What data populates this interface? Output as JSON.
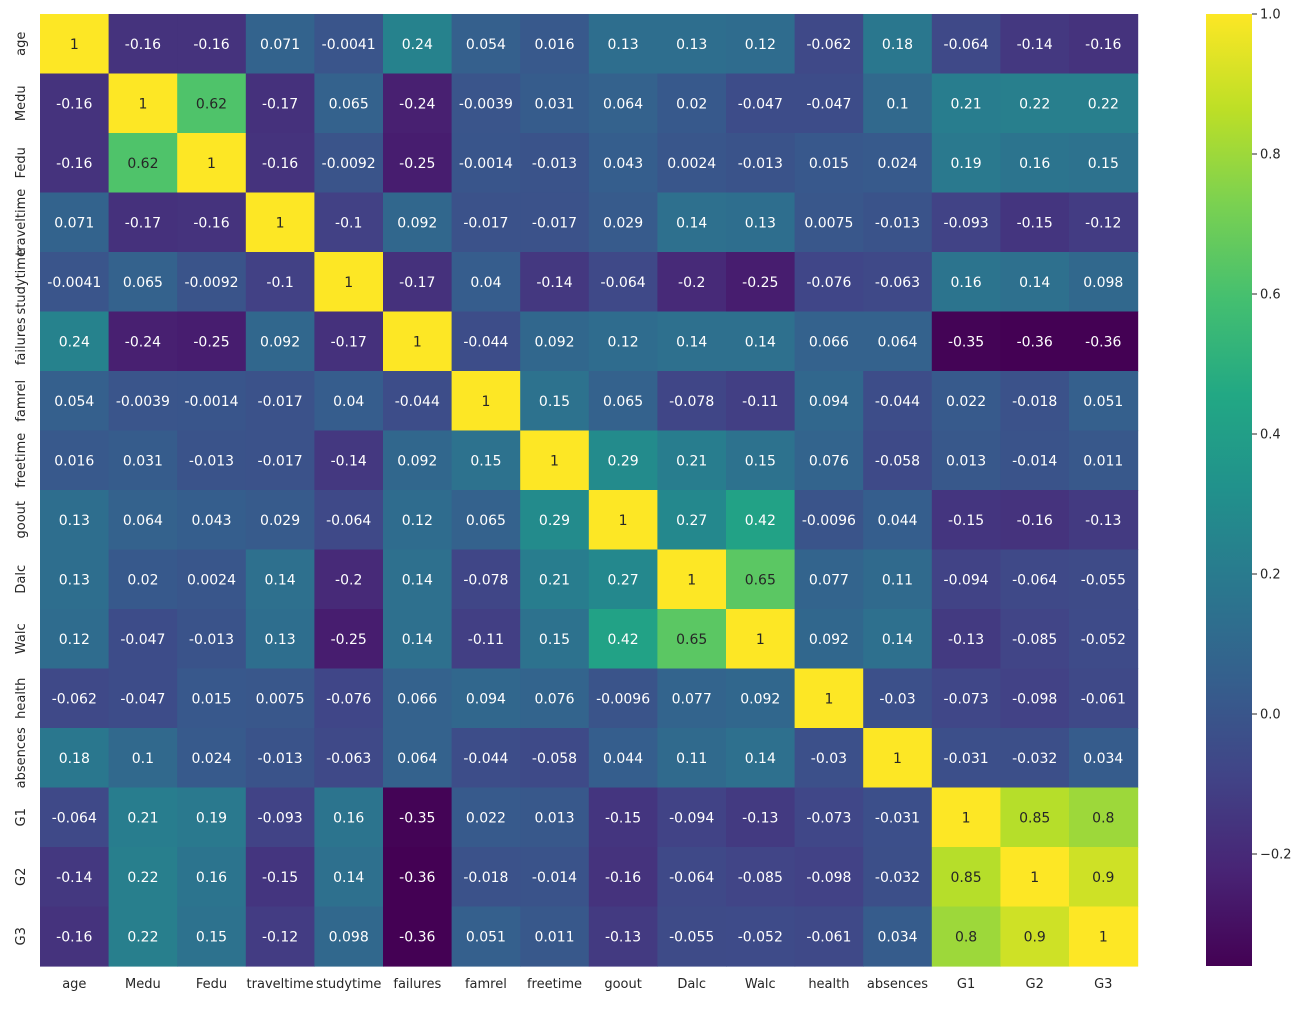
{
  "chart_data": {
    "type": "heatmap",
    "title": "",
    "xlabel": "",
    "ylabel": "",
    "colormap": "viridis",
    "vmin": -0.36,
    "vmax": 1.0,
    "categories": [
      "age",
      "Medu",
      "Fedu",
      "traveltime",
      "studytime",
      "failures",
      "famrel",
      "freetime",
      "goout",
      "Dalc",
      "Walc",
      "health",
      "absences",
      "G1",
      "G2",
      "G3"
    ],
    "values": [
      [
        "1",
        "-0.16",
        "-0.16",
        "0.071",
        "-0.0041",
        "0.24",
        "0.054",
        "0.016",
        "0.13",
        "0.13",
        "0.12",
        "-0.062",
        "0.18",
        "-0.064",
        "-0.14",
        "-0.16"
      ],
      [
        "-0.16",
        "1",
        "0.62",
        "-0.17",
        "0.065",
        "-0.24",
        "-0.0039",
        "0.031",
        "0.064",
        "0.02",
        "-0.047",
        "-0.047",
        "0.1",
        "0.21",
        "0.22",
        "0.22"
      ],
      [
        "-0.16",
        "0.62",
        "1",
        "-0.16",
        "-0.0092",
        "-0.25",
        "-0.0014",
        "-0.013",
        "0.043",
        "0.0024",
        "-0.013",
        "0.015",
        "0.024",
        "0.19",
        "0.16",
        "0.15"
      ],
      [
        "0.071",
        "-0.17",
        "-0.16",
        "1",
        "-0.1",
        "0.092",
        "-0.017",
        "-0.017",
        "0.029",
        "0.14",
        "0.13",
        "0.0075",
        "-0.013",
        "-0.093",
        "-0.15",
        "-0.12"
      ],
      [
        "-0.0041",
        "0.065",
        "-0.0092",
        "-0.1",
        "1",
        "-0.17",
        "0.04",
        "-0.14",
        "-0.064",
        "-0.2",
        "-0.25",
        "-0.076",
        "-0.063",
        "0.16",
        "0.14",
        "0.098"
      ],
      [
        "0.24",
        "-0.24",
        "-0.25",
        "0.092",
        "-0.17",
        "1",
        "-0.044",
        "0.092",
        "0.12",
        "0.14",
        "0.14",
        "0.066",
        "0.064",
        "-0.35",
        "-0.36",
        "-0.36"
      ],
      [
        "0.054",
        "-0.0039",
        "-0.0014",
        "-0.017",
        "0.04",
        "-0.044",
        "1",
        "0.15",
        "0.065",
        "-0.078",
        "-0.11",
        "0.094",
        "-0.044",
        "0.022",
        "-0.018",
        "0.051"
      ],
      [
        "0.016",
        "0.031",
        "-0.013",
        "-0.017",
        "-0.14",
        "0.092",
        "0.15",
        "1",
        "0.29",
        "0.21",
        "0.15",
        "0.076",
        "-0.058",
        "0.013",
        "-0.014",
        "0.011"
      ],
      [
        "0.13",
        "0.064",
        "0.043",
        "0.029",
        "-0.064",
        "0.12",
        "0.065",
        "0.29",
        "1",
        "0.27",
        "0.42",
        "-0.0096",
        "0.044",
        "-0.15",
        "-0.16",
        "-0.13"
      ],
      [
        "0.13",
        "0.02",
        "0.0024",
        "0.14",
        "-0.2",
        "0.14",
        "-0.078",
        "0.21",
        "0.27",
        "1",
        "0.65",
        "0.077",
        "0.11",
        "-0.094",
        "-0.064",
        "-0.055"
      ],
      [
        "0.12",
        "-0.047",
        "-0.013",
        "0.13",
        "-0.25",
        "0.14",
        "-0.11",
        "0.15",
        "0.42",
        "0.65",
        "1",
        "0.092",
        "0.14",
        "-0.13",
        "-0.085",
        "-0.052"
      ],
      [
        "-0.062",
        "-0.047",
        "0.015",
        "0.0075",
        "-0.076",
        "0.066",
        "0.094",
        "0.076",
        "-0.0096",
        "0.077",
        "0.092",
        "1",
        "-0.03",
        "-0.073",
        "-0.098",
        "-0.061"
      ],
      [
        "0.18",
        "0.1",
        "0.024",
        "-0.013",
        "-0.063",
        "0.064",
        "-0.044",
        "-0.058",
        "0.044",
        "0.11",
        "0.14",
        "-0.03",
        "1",
        "-0.031",
        "-0.032",
        "0.034"
      ],
      [
        "-0.064",
        "0.21",
        "0.19",
        "-0.093",
        "0.16",
        "-0.35",
        "0.022",
        "0.013",
        "-0.15",
        "-0.094",
        "-0.13",
        "-0.073",
        "-0.031",
        "1",
        "0.85",
        "0.8"
      ],
      [
        "-0.14",
        "0.22",
        "0.16",
        "-0.15",
        "0.14",
        "-0.36",
        "-0.018",
        "-0.014",
        "-0.16",
        "-0.064",
        "-0.085",
        "-0.098",
        "-0.032",
        "0.85",
        "1",
        "0.9"
      ],
      [
        "-0.16",
        "0.22",
        "0.15",
        "-0.12",
        "0.098",
        "-0.36",
        "0.051",
        "0.011",
        "-0.13",
        "-0.055",
        "-0.052",
        "-0.061",
        "0.034",
        "0.8",
        "0.9",
        "1"
      ]
    ],
    "colorbar": {
      "ticks": [
        1.0,
        0.8,
        0.6,
        0.4,
        0.2,
        0.0,
        -0.2
      ],
      "tick_labels": [
        "1.0",
        "0.8",
        "0.6",
        "0.4",
        "0.2",
        "0.0",
        "−0.2"
      ]
    }
  }
}
